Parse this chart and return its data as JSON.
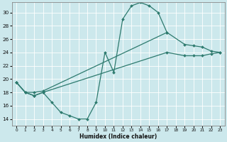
{
  "xlabel": "Humidex (Indice chaleur)",
  "xlim": [
    -0.5,
    23.5
  ],
  "ylim": [
    13.0,
    31.5
  ],
  "xticks": [
    0,
    1,
    2,
    3,
    4,
    5,
    6,
    7,
    8,
    9,
    10,
    11,
    12,
    13,
    14,
    15,
    16,
    17,
    18,
    19,
    20,
    21,
    22,
    23
  ],
  "yticks": [
    14,
    16,
    18,
    20,
    22,
    24,
    26,
    28,
    30
  ],
  "bg_color": "#cce8ec",
  "line_color": "#2d7a6e",
  "grid_color": "#ffffff",
  "line1_x": [
    0,
    1,
    2,
    3,
    4,
    5,
    6,
    7,
    8,
    9,
    10,
    11,
    12,
    13,
    14,
    15,
    16,
    17
  ],
  "line1_y": [
    19.5,
    18.0,
    17.5,
    18.0,
    16.5,
    15.0,
    14.5,
    14.0,
    14.0,
    16.5,
    24.0,
    21.0,
    29.0,
    31.0,
    31.5,
    31.0,
    30.0,
    27.0
  ],
  "line2_x": [
    0,
    1,
    2,
    3,
    17,
    19,
    20,
    21,
    22,
    23
  ],
  "line2_y": [
    19.5,
    18.0,
    18.0,
    18.2,
    27.0,
    25.2,
    25.0,
    24.8,
    24.2,
    24.0
  ],
  "line3_x": [
    0,
    1,
    2,
    3,
    17,
    19,
    20,
    21,
    22,
    23
  ],
  "line3_y": [
    19.5,
    18.0,
    17.5,
    18.0,
    24.0,
    23.5,
    23.5,
    23.5,
    23.8,
    24.0
  ],
  "marker": "D",
  "markersize": 2.0,
  "linewidth": 0.9
}
